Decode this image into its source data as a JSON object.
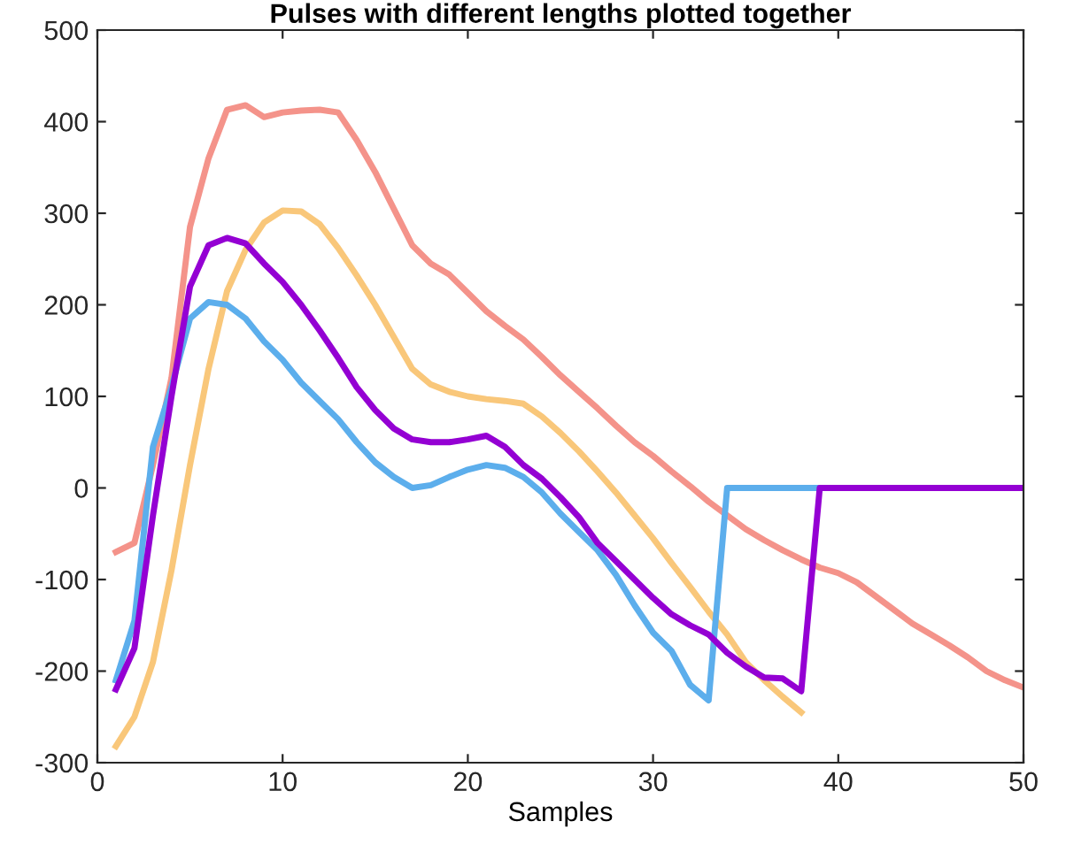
{
  "chart_data": {
    "type": "line",
    "title": "Pulses with different lengths plotted together",
    "xlabel": "Samples",
    "x": [
      1,
      2,
      3,
      4,
      5,
      6,
      7,
      8,
      9,
      10,
      11,
      12,
      13,
      14,
      15,
      16,
      17,
      18,
      19,
      20,
      21,
      22,
      23,
      24,
      25,
      26,
      27,
      28,
      29,
      30,
      31,
      32,
      33,
      34,
      35,
      36,
      37,
      38,
      39,
      40,
      41,
      42,
      43,
      44,
      45,
      46,
      47,
      48,
      49,
      50
    ],
    "series": [
      {
        "color": "#f9c77a",
        "values": [
          -282,
          -250,
          -190,
          -90,
          25,
          130,
          215,
          260,
          290,
          303,
          302,
          288,
          262,
          232,
          200,
          165,
          130,
          113,
          105,
          100,
          97,
          95,
          92,
          78,
          60,
          40,
          18,
          -5,
          -30,
          -55,
          -82,
          -108,
          -135,
          -160,
          -190,
          -210,
          -228,
          -245,
          null,
          null,
          null,
          null,
          null,
          null,
          null,
          null,
          null,
          null,
          null,
          null
        ]
      },
      {
        "color": "#f4938a",
        "values": [
          -70,
          -60,
          25,
          120,
          285,
          360,
          413,
          418,
          405,
          410,
          412,
          413,
          410,
          380,
          345,
          305,
          265,
          245,
          233,
          213,
          193,
          177,
          162,
          143,
          123,
          105,
          87,
          68,
          50,
          35,
          18,
          2,
          -15,
          -30,
          -45,
          -57,
          -68,
          -78,
          -87,
          -93,
          -103,
          -118,
          -133,
          -148,
          -160,
          -172,
          -185,
          -200,
          -210,
          -218
        ]
      },
      {
        "color": "#5caeec",
        "values": [
          -210,
          -145,
          45,
          110,
          185,
          203,
          200,
          185,
          160,
          140,
          115,
          95,
          75,
          50,
          28,
          12,
          0,
          3,
          12,
          20,
          25,
          22,
          12,
          -5,
          -28,
          -48,
          -68,
          -95,
          -128,
          -158,
          -178,
          -215,
          -232,
          0,
          0,
          0,
          0,
          0,
          0,
          null,
          null,
          null,
          null,
          null,
          null,
          null,
          null,
          null,
          null,
          null
        ]
      },
      {
        "color": "#9400d3",
        "values": [
          -220,
          -175,
          -30,
          100,
          220,
          265,
          273,
          267,
          245,
          225,
          200,
          172,
          142,
          110,
          85,
          65,
          53,
          50,
          50,
          53,
          57,
          45,
          25,
          10,
          -10,
          -32,
          -60,
          -80,
          -100,
          -120,
          -138,
          -150,
          -160,
          -180,
          -195,
          -207,
          -208,
          -222,
          0,
          0,
          0,
          0,
          0,
          0,
          0,
          0,
          0,
          0,
          0,
          0
        ]
      }
    ],
    "xlim": [
      0,
      50
    ],
    "xticks": [
      0,
      10,
      20,
      30,
      40,
      50
    ],
    "ylim": [
      -300,
      500
    ],
    "yticks": [
      -300,
      -200,
      -100,
      0,
      100,
      200,
      300,
      400,
      500
    ],
    "grid": false,
    "legend": false,
    "marker": "none",
    "line_style": "solid"
  }
}
